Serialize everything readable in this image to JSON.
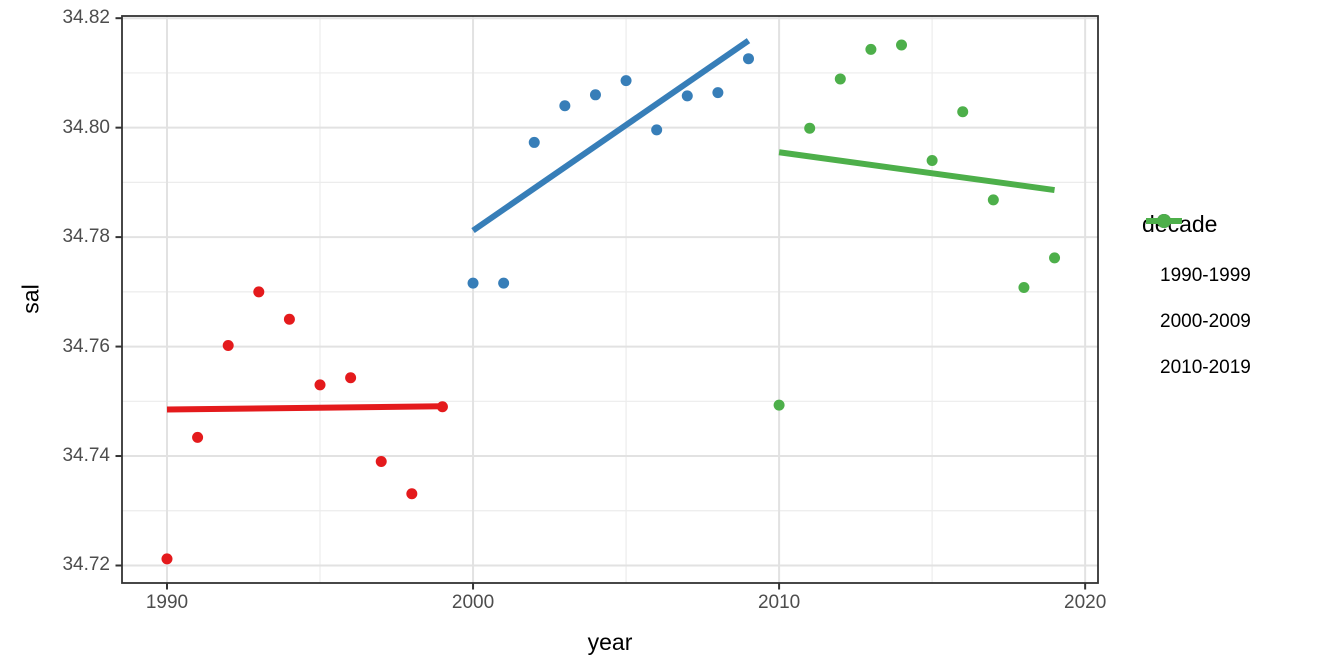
{
  "chart_data": {
    "type": "scatter",
    "title": "",
    "xlabel": "year",
    "ylabel": "sal",
    "legend_title": "decade",
    "legend_position": "right",
    "grid": true,
    "panel_background": "#ffffff",
    "panel_border_color": "#333333",
    "grid_major_color": "#e2e2e2",
    "grid_minor_color": "#ececec",
    "tick_text_color": "#4d4d4d",
    "x_domain": [
      1988.53,
      2020.42
    ],
    "y_domain": [
      34.7168,
      34.8204
    ],
    "x_ticks": {
      "values": [
        1990,
        2000,
        2010,
        2020
      ],
      "labels": [
        "1990",
        "2000",
        "2010",
        "2020"
      ],
      "minor": [
        1995,
        2005,
        2015
      ]
    },
    "y_ticks": {
      "values": [
        34.72,
        34.74,
        34.76,
        34.78,
        34.8,
        34.82
      ],
      "labels": [
        "34.72",
        "34.74",
        "34.76",
        "34.78",
        "34.80",
        "34.82"
      ],
      "minor": [
        34.73,
        34.75,
        34.77,
        34.79,
        34.81
      ]
    },
    "series": [
      {
        "name": "1990-1999",
        "color": "#E41A1C",
        "points": [
          [
            1990,
            34.7212
          ],
          [
            1991,
            34.7434
          ],
          [
            1992,
            34.7602
          ],
          [
            1993,
            34.77
          ],
          [
            1994,
            34.765
          ],
          [
            1995,
            34.753
          ],
          [
            1996,
            34.7543
          ],
          [
            1997,
            34.739
          ],
          [
            1998,
            34.7331
          ],
          [
            1999,
            34.749
          ]
        ],
        "trend": [
          [
            1990,
            34.7485
          ],
          [
            1999,
            34.7491
          ]
        ]
      },
      {
        "name": "2000-2009",
        "color": "#377EB8",
        "points": [
          [
            2000,
            34.7716
          ],
          [
            2001,
            34.7716
          ],
          [
            2002,
            34.7973
          ],
          [
            2003,
            34.804
          ],
          [
            2004,
            34.806
          ],
          [
            2005,
            34.8086
          ],
          [
            2006,
            34.7996
          ],
          [
            2007,
            34.8058
          ],
          [
            2008,
            34.8064
          ],
          [
            2009,
            34.8126
          ]
        ],
        "trend": [
          [
            2000,
            34.7812
          ],
          [
            2009,
            34.8159
          ]
        ]
      },
      {
        "name": "2010-2019",
        "color": "#4DAF4A",
        "points": [
          [
            2010,
            34.7493
          ],
          [
            2011,
            34.7999
          ],
          [
            2012,
            34.8089
          ],
          [
            2013,
            34.8143
          ],
          [
            2014,
            34.8151
          ],
          [
            2015,
            34.794
          ],
          [
            2016,
            34.8029
          ],
          [
            2017,
            34.7868
          ],
          [
            2018,
            34.7708
          ],
          [
            2019,
            34.7762
          ]
        ],
        "trend": [
          [
            2010,
            34.7955
          ],
          [
            2019,
            34.7886
          ]
        ]
      }
    ]
  }
}
